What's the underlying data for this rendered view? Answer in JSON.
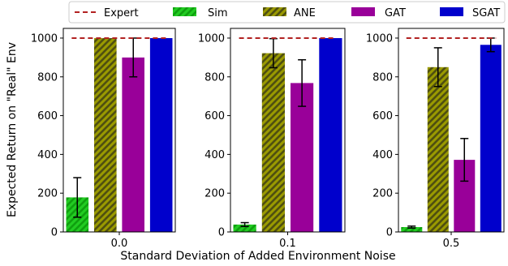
{
  "chart_data": {
    "type": "bar",
    "xlabel": "Standard Deviation of Added Environment Noise",
    "ylabel": "Expected Return on \"Real\" Env",
    "ylim": [
      0,
      1050
    ],
    "yticks": [
      0,
      200,
      400,
      600,
      800,
      1000
    ],
    "grid": false,
    "legend": {
      "placement": "top",
      "entries": [
        {
          "name": "Expert",
          "style": "dashed-line",
          "color": "#b22222"
        },
        {
          "name": "Sim",
          "style": "hatched",
          "color": "#22cc22"
        },
        {
          "name": "ANE",
          "style": "hatched",
          "color": "#8b8b00"
        },
        {
          "name": "GAT",
          "style": "solid",
          "color": "#990099"
        },
        {
          "name": "SGAT",
          "style": "solid",
          "color": "#0000cc"
        }
      ]
    },
    "expert_value": 1000,
    "panels": [
      {
        "category": "0.0",
        "bars": [
          {
            "series": "Sim",
            "value": 178,
            "err": 102
          },
          {
            "series": "ANE",
            "value": 1000,
            "err": 0
          },
          {
            "series": "GAT",
            "value": 900,
            "err": 100
          },
          {
            "series": "SGAT",
            "value": 1000,
            "err": 0
          }
        ]
      },
      {
        "category": "0.1",
        "bars": [
          {
            "series": "Sim",
            "value": 38,
            "err": 10
          },
          {
            "series": "ANE",
            "value": 922,
            "err": 75
          },
          {
            "series": "GAT",
            "value": 768,
            "err": 120
          },
          {
            "series": "SGAT",
            "value": 1000,
            "err": 0
          }
        ]
      },
      {
        "category": "0.5",
        "bars": [
          {
            "series": "Sim",
            "value": 25,
            "err": 5
          },
          {
            "series": "ANE",
            "value": 850,
            "err": 100
          },
          {
            "series": "GAT",
            "value": 372,
            "err": 110
          },
          {
            "series": "SGAT",
            "value": 965,
            "err": 35
          }
        ]
      }
    ]
  }
}
